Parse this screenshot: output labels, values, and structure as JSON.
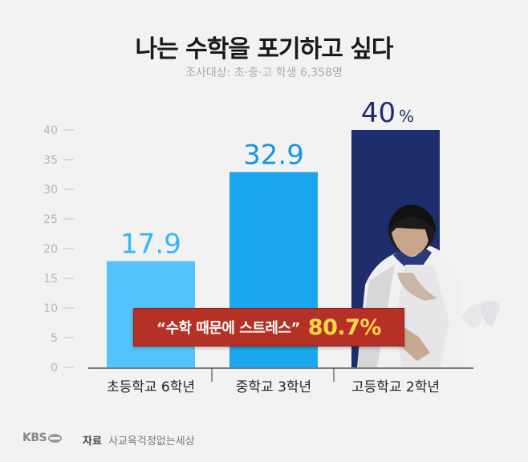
{
  "title": "나는 수학을 포기하고 싶다",
  "subtitle": "조사대상: 초·중·고 학생 6,358명",
  "callout": {
    "quote": "“수학 때문에 스트레스”",
    "value": "80.7%"
  },
  "footer": {
    "logo_text": "KBS",
    "source_label": "자료",
    "source_name": "사교육걱정없는세상"
  },
  "colors": {
    "bar1": "#52c4fb",
    "bar2": "#1aa7f0",
    "bar3": "#1e2d6b",
    "label1": "#34b6f5",
    "label2": "#1596e0",
    "label3": "#1e2d6b",
    "callout_bg": "#b53025",
    "callout_value": "#ffd84a"
  },
  "chart_data": {
    "type": "bar",
    "categories": [
      "초등학교 6학년",
      "중학교 3학년",
      "고등학교 2학년"
    ],
    "values": [
      17.9,
      32.9,
      40
    ],
    "data_labels": [
      "17.9",
      "32.9",
      "40"
    ],
    "last_label_unit": "%",
    "ylim": [
      0,
      40
    ],
    "yticks": [
      0,
      5,
      10,
      15,
      20,
      25,
      30,
      35,
      40
    ],
    "grid": false,
    "legend": "none"
  }
}
